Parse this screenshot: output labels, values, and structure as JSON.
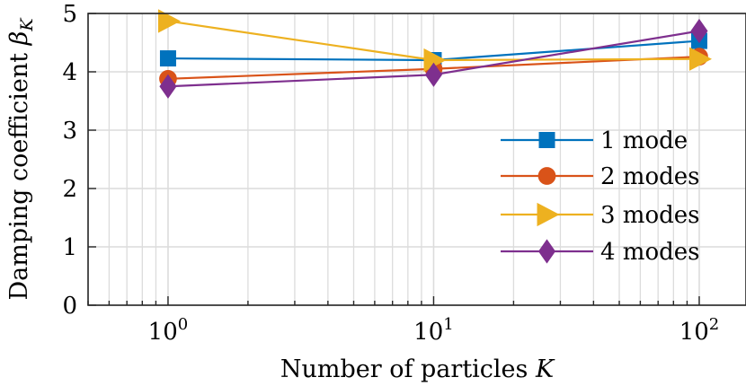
{
  "chart_data": {
    "type": "line",
    "x": [
      1,
      10,
      100
    ],
    "x_scale": "log",
    "xlim": [
      0.5,
      150
    ],
    "ylim": [
      0,
      5
    ],
    "xlabel": "Number of particles K",
    "ylabel": "Damping coefficient βK",
    "x_ticks": [
      {
        "value": 1,
        "base": "10",
        "exp": "0"
      },
      {
        "value": 10,
        "base": "10",
        "exp": "1"
      },
      {
        "value": 100,
        "base": "10",
        "exp": "2"
      }
    ],
    "y_ticks": [
      "0",
      "1",
      "2",
      "3",
      "4",
      "5"
    ],
    "grid": true,
    "legend_position": "right",
    "series": [
      {
        "name": "1 mode",
        "color": "#0072BD",
        "marker": "square",
        "values": [
          4.23,
          4.2,
          4.53
        ]
      },
      {
        "name": "2 modes",
        "color": "#D95319",
        "marker": "circle",
        "values": [
          3.88,
          4.05,
          4.26
        ]
      },
      {
        "name": "3 modes",
        "color": "#EDB120",
        "marker": "triangle-right",
        "values": [
          4.87,
          4.2,
          4.22
        ]
      },
      {
        "name": "4 modes",
        "color": "#7E2F8E",
        "marker": "diamond",
        "values": [
          3.75,
          3.95,
          4.7
        ]
      }
    ]
  }
}
